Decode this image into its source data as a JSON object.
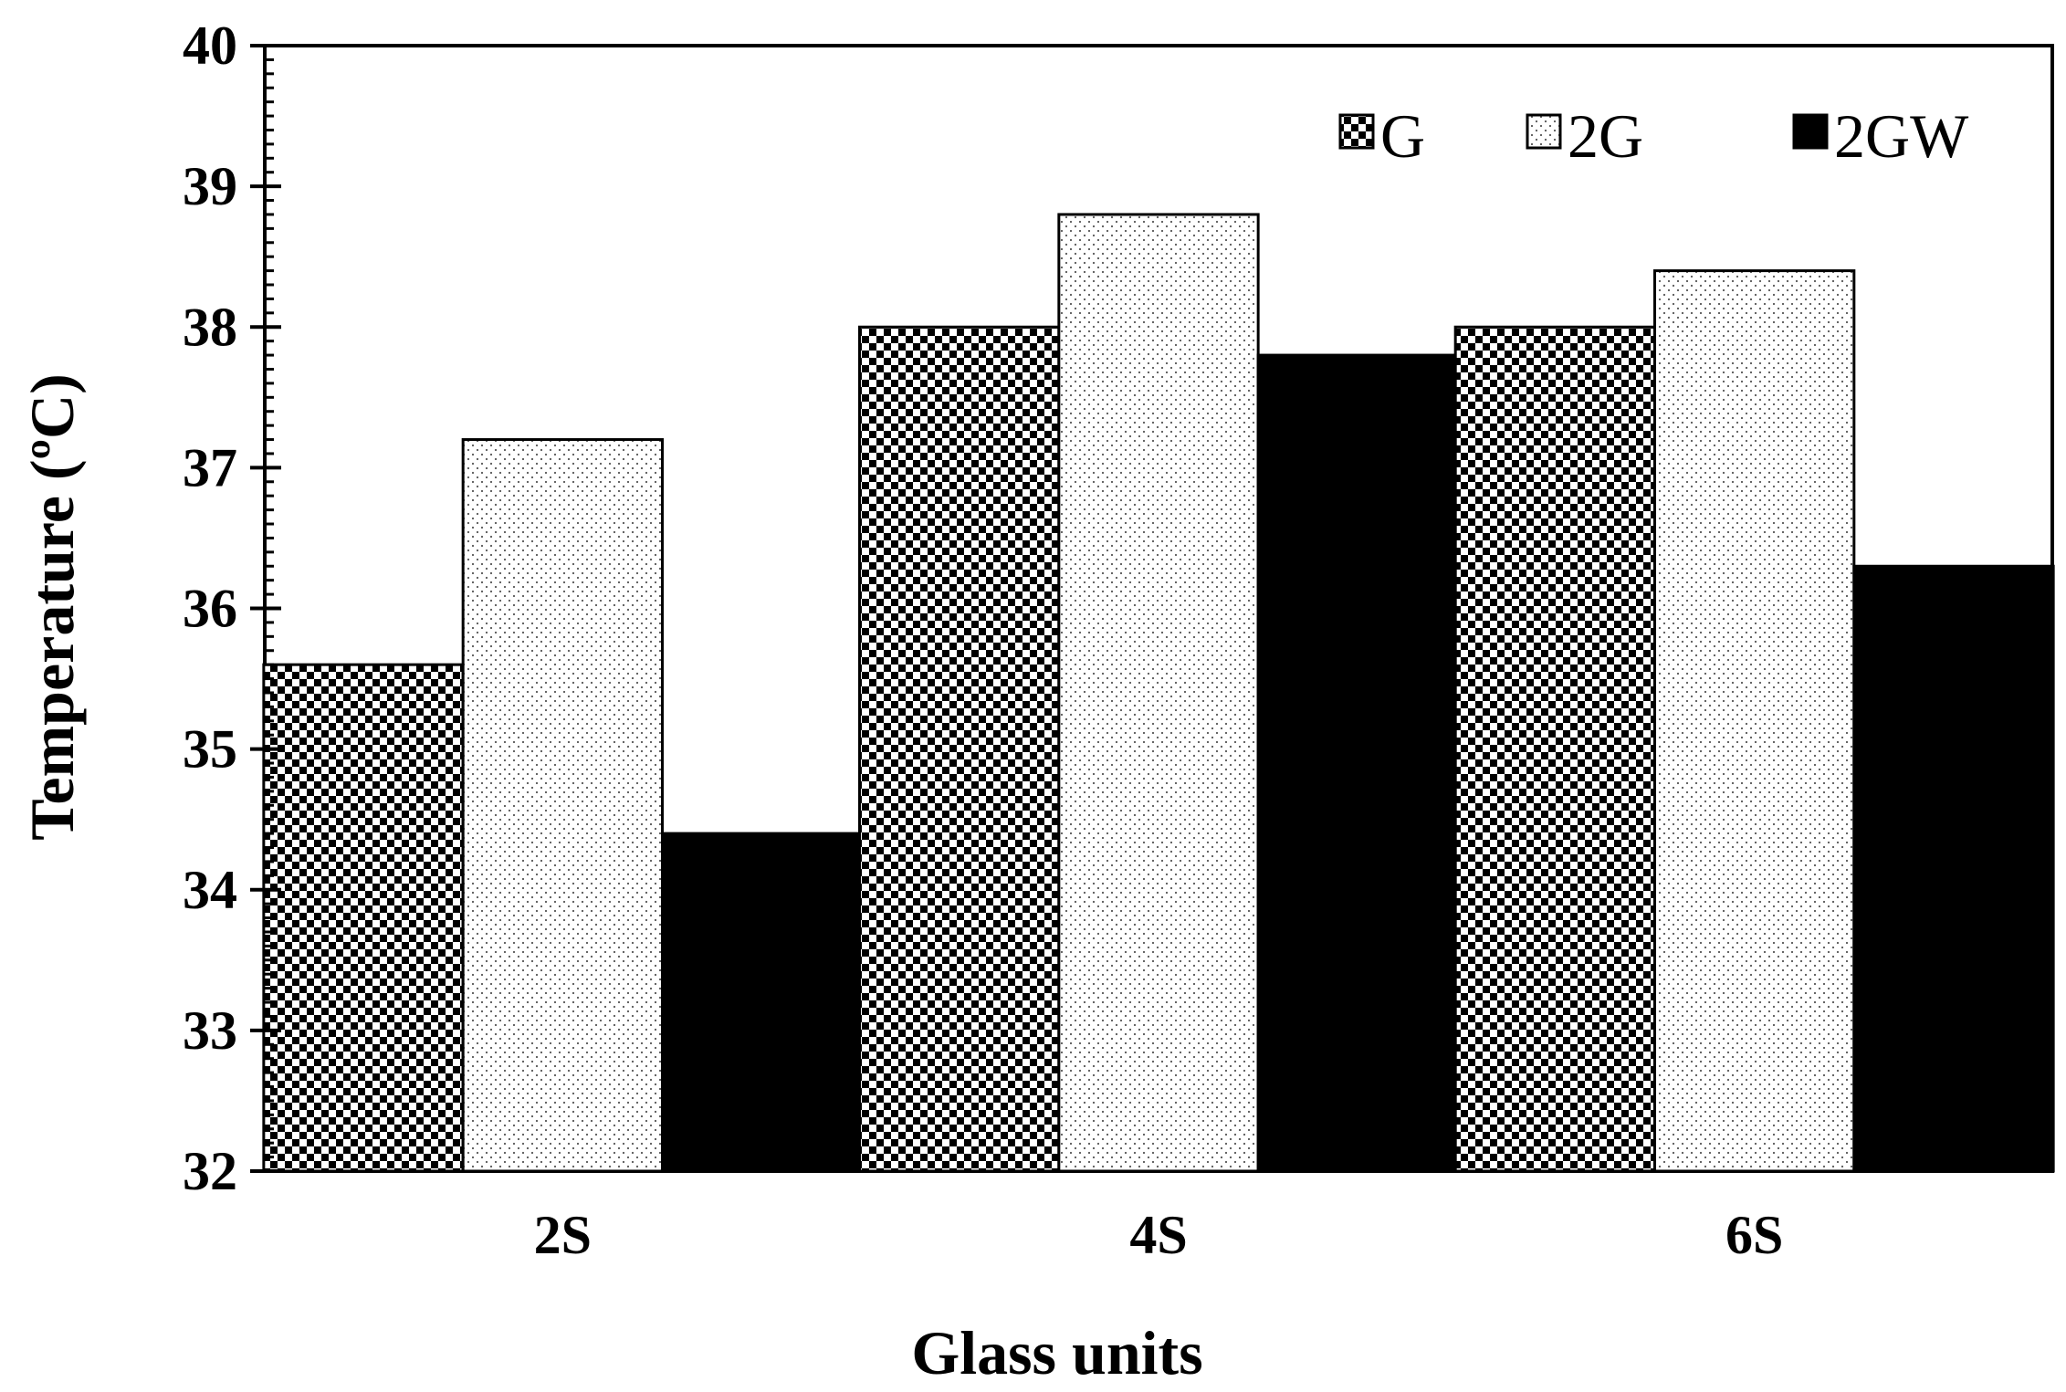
{
  "chart_data": {
    "type": "bar",
    "title": "",
    "xlabel": "Glass units",
    "ylabel": "Temperature (ºC)",
    "categories": [
      "2S",
      "4S",
      "6S"
    ],
    "ylim": [
      32,
      40
    ],
    "yticks": [
      "32",
      "33",
      "34",
      "35",
      "36",
      "37",
      "38",
      "39",
      "40"
    ],
    "series": [
      {
        "name": "G",
        "values": [
          35.6,
          38.0,
          38.0
        ],
        "pattern": "checker"
      },
      {
        "name": "2G",
        "values": [
          37.2,
          38.8,
          38.4
        ],
        "pattern": "dots"
      },
      {
        "name": "2GW",
        "values": [
          34.4,
          37.8,
          36.3
        ],
        "pattern": "solid"
      }
    ],
    "legend_position": "top-right",
    "grid": false,
    "colors": {
      "axis": "#000000",
      "bar_outline": "#000000",
      "solid_fill": "#000000",
      "background": "#ffffff"
    }
  }
}
